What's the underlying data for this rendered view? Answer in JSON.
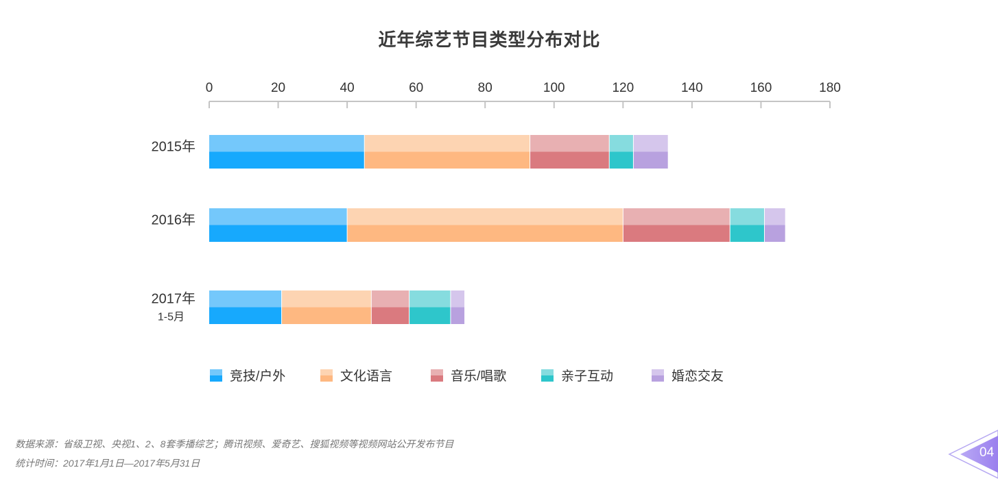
{
  "chart_data": {
    "type": "bar",
    "orientation": "horizontal",
    "stacked": true,
    "title": "近年综艺节目类型分布对比",
    "xlim": [
      0,
      180
    ],
    "x_ticks": [
      "0",
      "20",
      "40",
      "60",
      "80",
      "100",
      "120",
      "140",
      "160",
      "180"
    ],
    "categories": [
      {
        "label": "2015年",
        "sublabel": ""
      },
      {
        "label": "2016年",
        "sublabel": ""
      },
      {
        "label": "2017年",
        "sublabel": "1-5月"
      }
    ],
    "series": [
      {
        "name": "竞技/户外",
        "color_light": "#74c8fb",
        "color_dark": "#17a9fd",
        "values": [
          45,
          40,
          21
        ]
      },
      {
        "name": "文化语言",
        "color_light": "#fdd4b2",
        "color_dark": "#feb881",
        "values": [
          48,
          80,
          26
        ]
      },
      {
        "name": "音乐/唱歌",
        "color_light": "#e8b0b2",
        "color_dark": "#da7a7f",
        "values": [
          23,
          31,
          11
        ]
      },
      {
        "name": "亲子互动",
        "color_light": "#86dcdf",
        "color_dark": "#2ec6cb",
        "values": [
          7,
          10,
          12
        ]
      },
      {
        "name": "婚恋交友",
        "color_light": "#d5c6ec",
        "color_dark": "#b8a1df",
        "values": [
          10,
          6,
          4
        ]
      }
    ],
    "legend_position": "bottom",
    "grid": false
  },
  "notes": {
    "source": "数据来源：省级卫视、央视1、2、8套季播综艺；腾讯视频、爱奇艺、搜狐视频等视频网站公开发布节目",
    "time": "统计时间：2017年1月1日—2017年5月31日"
  },
  "page_number": "04",
  "page_badge_icon": "triangle-arrow-icon"
}
